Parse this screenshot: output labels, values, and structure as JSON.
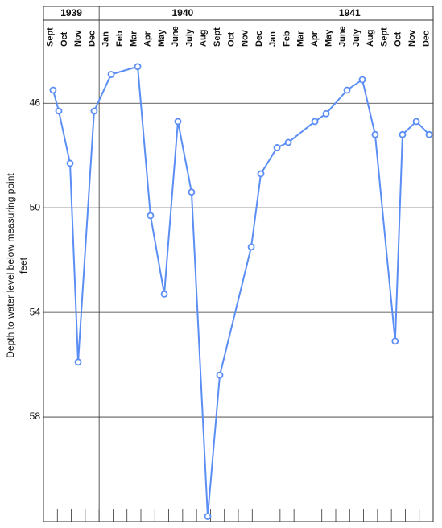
{
  "chart_data": {
    "type": "line",
    "y_label": [
      "Depth to water level below measuring point",
      "feet"
    ],
    "groups": [
      {
        "label": "1939",
        "categories": [
          "Sept",
          "Oct",
          "Nov",
          "Dec"
        ]
      },
      {
        "label": "1940",
        "categories": [
          "Jan",
          "Feb",
          "Mar",
          "Apr",
          "May",
          "June",
          "July",
          "Aug",
          "Sept",
          "Oct",
          "Nov",
          "Dec"
        ]
      },
      {
        "label": "1941",
        "categories": [
          "Jan",
          "Feb",
          "Mar",
          "Apr",
          "May",
          "June",
          "July",
          "Aug",
          "Sept",
          "Oct",
          "Nov",
          "Dec"
        ]
      }
    ],
    "xlim": [
      0,
      28
    ],
    "x": [
      0.69,
      1.1,
      1.91,
      2.49,
      3.64,
      4.86,
      6.77,
      7.69,
      8.68,
      9.66,
      10.64,
      11.8,
      12.67,
      14.93,
      15.62,
      16.78,
      17.59,
      19.5,
      20.31,
      21.81,
      22.91,
      23.83,
      25.27,
      25.8,
      26.79,
      27.71
    ],
    "series": [
      {
        "color": "#5b8ef5",
        "values": [
          45.5,
          46.3,
          48.3,
          55.9,
          46.3,
          44.9,
          44.6,
          50.3,
          53.3,
          46.7,
          49.4,
          61.8,
          56.4,
          51.5,
          48.7,
          47.7,
          47.5,
          46.7,
          46.4,
          45.5,
          45.1,
          47.2,
          55.1,
          47.2,
          46.7,
          47.2
        ]
      }
    ],
    "ylim": [
      43.9,
      62
    ],
    "yticks": [
      46,
      50,
      54,
      58
    ],
    "y_inverted": true,
    "grid": true
  }
}
